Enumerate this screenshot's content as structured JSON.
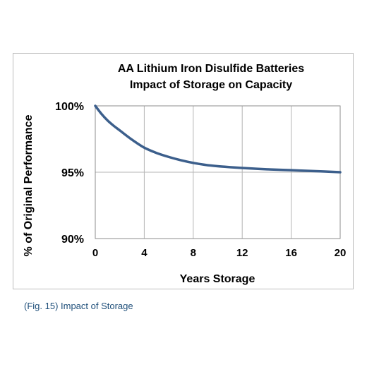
{
  "caption": "(Fig. 15) Impact of Storage",
  "chart_data": {
    "type": "line",
    "title_lines": [
      "AA Lithium Iron Disulfide Batteries",
      "Impact of Storage on Capacity"
    ],
    "xlabel": "Years Storage",
    "ylabel": "% of Original Performance",
    "xlim": [
      0,
      20
    ],
    "ylim": [
      90,
      100
    ],
    "x_ticks": [
      0,
      4,
      8,
      12,
      16,
      20
    ],
    "y_ticks": [
      {
        "value": 90,
        "label": "90%"
      },
      {
        "value": 95,
        "label": "95%"
      },
      {
        "value": 100,
        "label": "100%"
      }
    ],
    "grid": true,
    "line_color": "#3c5f8c",
    "series": [
      {
        "x": [
          0,
          0.5,
          1,
          1.5,
          2,
          3,
          4,
          5,
          6,
          7,
          8,
          9,
          10,
          11,
          12,
          14,
          16,
          18,
          20
        ],
        "y": [
          100,
          99.4,
          98.9,
          98.5,
          98.15,
          97.45,
          96.85,
          96.45,
          96.15,
          95.9,
          95.7,
          95.55,
          95.45,
          95.38,
          95.32,
          95.22,
          95.15,
          95.08,
          95.0
        ]
      }
    ]
  }
}
